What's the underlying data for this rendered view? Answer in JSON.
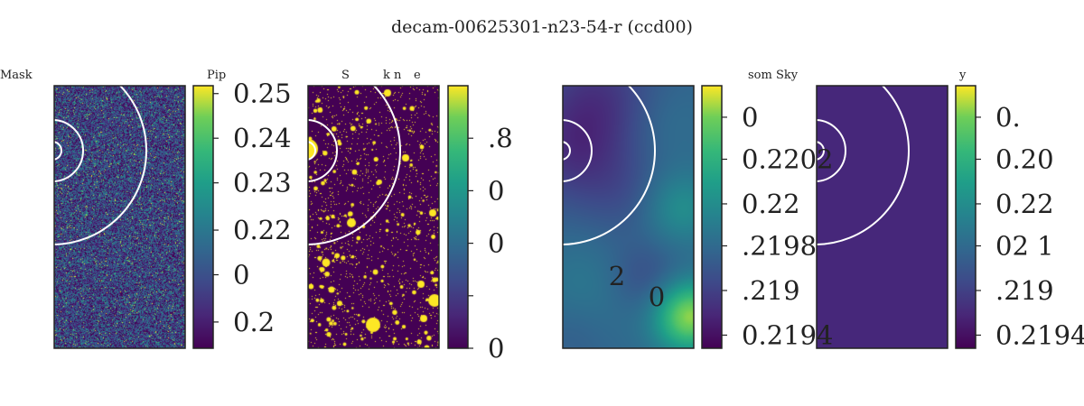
{
  "figure": {
    "title": "decam-00625301-n23-54-r (ccd00)"
  },
  "chart_data": [
    {
      "type": "heatmap",
      "title_fragments": [
        "Mask",
        "Pip"
      ],
      "colormap": "viridis",
      "pattern": "noise",
      "colorbar": {
        "ticks": [
          {
            "label": "0.25",
            "frac": 0.97
          },
          {
            "label": "0.24",
            "frac": 0.8
          },
          {
            "label": "0.23",
            "frac": 0.63
          },
          {
            "label": "0.22",
            "frac": 0.45
          },
          {
            "label": "0",
            "frac": 0.28
          },
          {
            "label": "0.2",
            "frac": 0.1
          }
        ]
      },
      "annotations": []
    },
    {
      "type": "heatmap",
      "title_fragments": [
        "S",
        "k n",
        "e"
      ],
      "colormap": "viridis",
      "pattern": "binary-mask",
      "colorbar": {
        "ticks": [
          {
            "label": ".8",
            "frac": 0.8
          },
          {
            "label": "0",
            "frac": 0.6
          },
          {
            "label": "0",
            "frac": 0.4
          },
          {
            "label": "",
            "frac": 0.2
          },
          {
            "label": "0",
            "frac": 0.0
          }
        ]
      },
      "annotations": []
    },
    {
      "type": "heatmap",
      "title_fragments": [
        "som Sky"
      ],
      "colormap": "viridis",
      "pattern": "smooth",
      "colorbar": {
        "ticks": [
          {
            "label": "0",
            "frac": 0.88
          },
          {
            "label": "0.2202",
            "frac": 0.72
          },
          {
            "label": "0.22",
            "frac": 0.55
          },
          {
            "label": ".2198",
            "frac": 0.39
          },
          {
            "label": ".219",
            "frac": 0.22
          },
          {
            "label": "0.2194",
            "frac": 0.05
          }
        ]
      },
      "annotations": [
        "2",
        "0"
      ]
    },
    {
      "type": "heatmap",
      "title_fragments": [
        "y"
      ],
      "colormap": "viridis",
      "pattern": "flat",
      "colorbar": {
        "ticks": [
          {
            "label": "0.",
            "frac": 0.88
          },
          {
            "label": "0.20",
            "frac": 0.72
          },
          {
            "label": "0.22",
            "frac": 0.55
          },
          {
            "label": "02   1",
            "frac": 0.39
          },
          {
            "label": ".219",
            "frac": 0.22
          },
          {
            "label": "0.2194",
            "frac": 0.05
          }
        ]
      },
      "annotations": []
    }
  ]
}
